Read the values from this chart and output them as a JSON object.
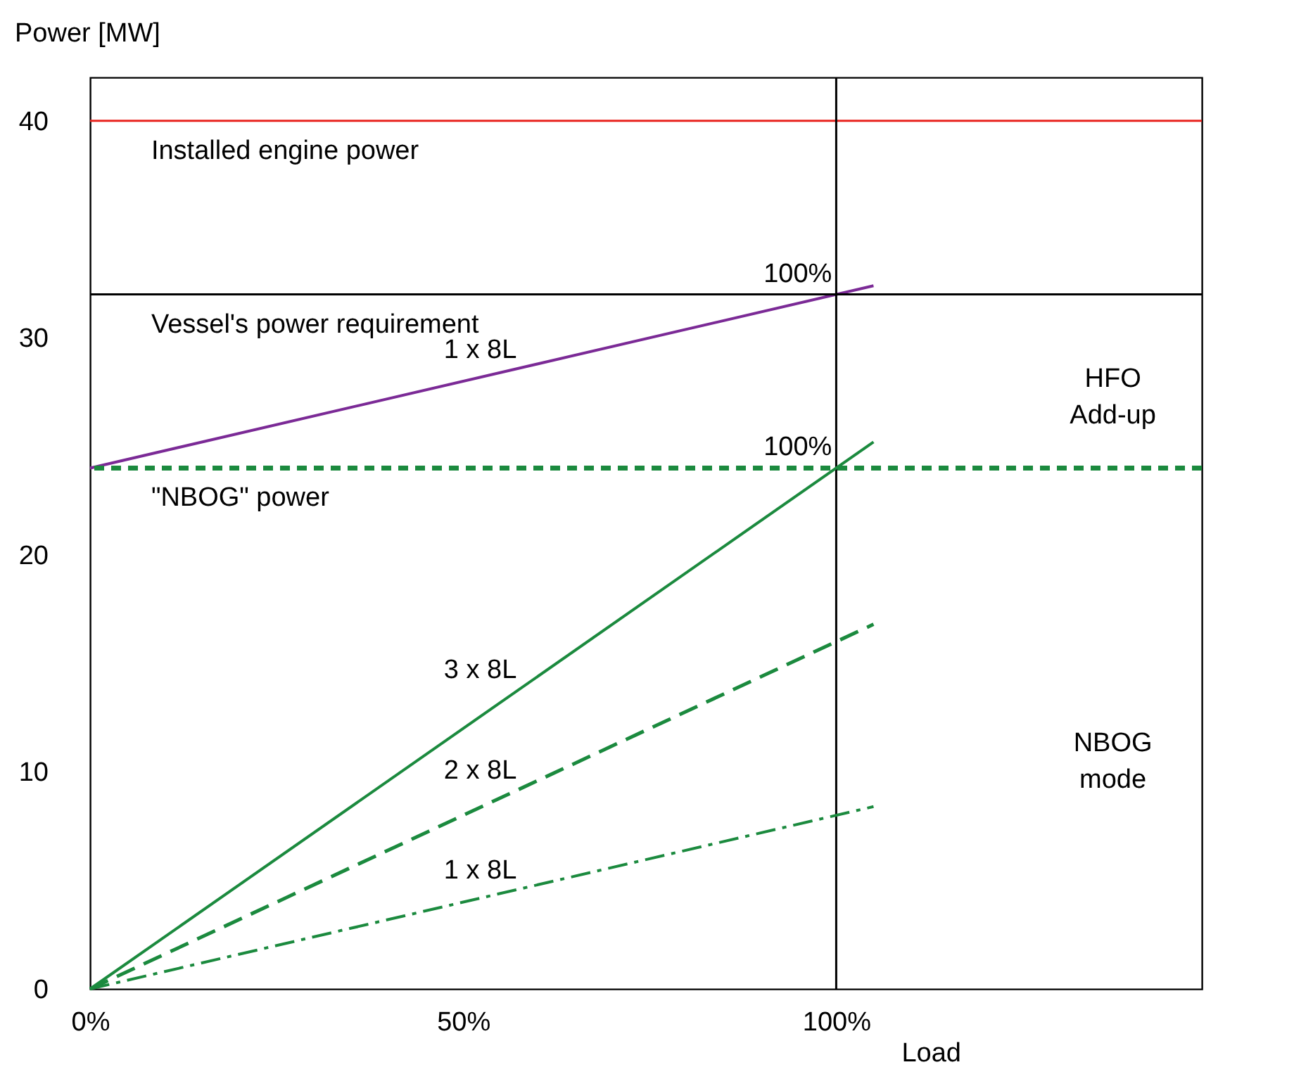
{
  "chart_data": {
    "type": "line",
    "xlabel": "Load",
    "ylabel": "Power [MW]",
    "xlim": [
      0,
      149
    ],
    "ylim": [
      0,
      42
    ],
    "xticks": [
      {
        "value": 0,
        "label": "0%"
      },
      {
        "value": 50,
        "label": "50%"
      },
      {
        "value": 100,
        "label": "100%"
      }
    ],
    "yticks": [
      0,
      10,
      20,
      30,
      40
    ],
    "grid": false,
    "marker": "none",
    "x": [
      0,
      105
    ],
    "series": [
      {
        "name": "1 x 8L",
        "color": "#7b2a96",
        "line_style": "solid",
        "values": [
          24,
          32.4
        ]
      },
      {
        "name": "3 x 8L",
        "color": "#1b8a3e",
        "line_style": "solid",
        "values": [
          0,
          25.2
        ]
      },
      {
        "name": "2 x 8L",
        "color": "#1b8a3e",
        "line_style": "dashed",
        "values": [
          0,
          16.8
        ]
      },
      {
        "name": "1 x 8L",
        "color": "#1b8a3e",
        "line_style": "dashdot",
        "values": [
          0,
          8.4
        ]
      }
    ],
    "ref_lines": [
      {
        "axis": "y",
        "value": 40,
        "label": "Installed engine power",
        "color": "#e8231e",
        "line_style": "solid"
      },
      {
        "axis": "y",
        "value": 32,
        "label": "Vessel's power requirement",
        "color": "#000000",
        "line_style": "solid"
      },
      {
        "axis": "y",
        "value": 24,
        "label": "\"NBOG\" power",
        "color": "#1b8a3e",
        "line_style": "dotted"
      },
      {
        "axis": "x",
        "value": 100,
        "color": "#000000",
        "line_style": "solid"
      }
    ],
    "annotations": [
      {
        "text": "100%",
        "x": 100,
        "y": 32
      },
      {
        "text": "100%",
        "x": 100,
        "y": 24
      },
      "HFO Add-up",
      "NBOG mode"
    ]
  }
}
